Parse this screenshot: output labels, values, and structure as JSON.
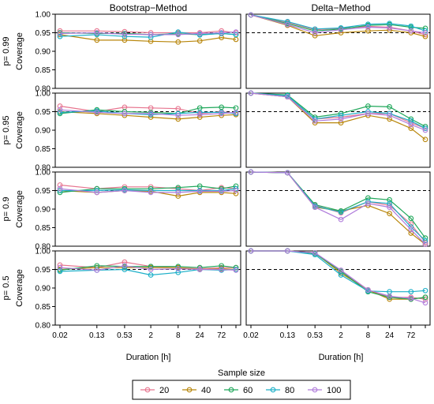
{
  "chart_data": {
    "type": "line",
    "column_titles": [
      "Bootstrap−Method",
      "Delta−Method"
    ],
    "row_titles": [
      "p= 0.99",
      "p= 0.95",
      "p= 0.9",
      "p= 0.5"
    ],
    "ylabel": "Coverage",
    "xlabel": "Duration [h]",
    "x_ticks": [
      "0.02",
      "0.13",
      "0.53",
      "2",
      "8",
      "24",
      "72"
    ],
    "x_values": [
      0.02,
      0.13,
      0.53,
      2,
      8,
      24,
      72,
      150
    ],
    "x_scale": "log",
    "y_ticks": [
      "0.80",
      "0.85",
      "0.90",
      "0.95",
      "1.00"
    ],
    "ylim": [
      0.8,
      1.0
    ],
    "reference_line": 0.95,
    "legend": {
      "title": "Sample size",
      "position": "bottom"
    },
    "series_meta": [
      {
        "name": "20",
        "color": "#E7758F"
      },
      {
        "name": "40",
        "color": "#B8860B"
      },
      {
        "name": "60",
        "color": "#1FA75A"
      },
      {
        "name": "80",
        "color": "#1BAFC8"
      },
      {
        "name": "100",
        "color": "#B07CDB"
      }
    ],
    "panels": [
      {
        "row": 0,
        "col": 0,
        "values": [
          [
            0.955,
            0.955,
            0.953,
            0.95,
            0.95,
            0.95,
            0.955,
            0.95
          ],
          [
            0.945,
            0.93,
            0.93,
            0.927,
            0.925,
            0.928,
            0.937,
            0.932
          ],
          [
            0.95,
            0.948,
            0.948,
            0.945,
            0.947,
            0.945,
            0.948,
            0.945
          ],
          [
            0.94,
            0.945,
            0.94,
            0.938,
            0.952,
            0.944,
            0.948,
            0.945
          ],
          [
            0.948,
            0.95,
            0.946,
            0.945,
            0.945,
            0.948,
            0.95,
            0.952
          ]
        ]
      },
      {
        "row": 0,
        "col": 1,
        "values": [
          [
            0.998,
            0.978,
            0.958,
            0.962,
            0.967,
            0.965,
            0.955,
            0.945
          ],
          [
            0.998,
            0.97,
            0.942,
            0.95,
            0.955,
            0.957,
            0.95,
            0.94
          ],
          [
            0.998,
            0.975,
            0.955,
            0.96,
            0.97,
            0.972,
            0.965,
            0.962
          ],
          [
            0.998,
            0.98,
            0.96,
            0.963,
            0.973,
            0.975,
            0.968,
            0.955
          ],
          [
            0.998,
            0.972,
            0.95,
            0.958,
            0.965,
            0.963,
            0.955,
            0.95
          ]
        ]
      },
      {
        "row": 1,
        "col": 0,
        "values": [
          [
            0.965,
            0.95,
            0.962,
            0.96,
            0.958,
            0.945,
            0.95,
            0.945
          ],
          [
            0.95,
            0.945,
            0.94,
            0.935,
            0.93,
            0.935,
            0.94,
            0.942
          ],
          [
            0.945,
            0.955,
            0.95,
            0.948,
            0.945,
            0.96,
            0.962,
            0.96
          ],
          [
            0.948,
            0.952,
            0.945,
            0.942,
            0.945,
            0.948,
            0.948,
            0.945
          ],
          [
            0.955,
            0.948,
            0.945,
            0.945,
            0.94,
            0.942,
            0.945,
            0.948
          ]
        ]
      },
      {
        "row": 1,
        "col": 1,
        "values": [
          [
            1.0,
            0.99,
            0.93,
            0.935,
            0.945,
            0.945,
            0.92,
            0.905
          ],
          [
            1.0,
            0.99,
            0.92,
            0.92,
            0.94,
            0.93,
            0.905,
            0.875
          ],
          [
            1.0,
            0.995,
            0.935,
            0.945,
            0.965,
            0.963,
            0.93,
            0.91
          ],
          [
            1.0,
            0.993,
            0.93,
            0.94,
            0.95,
            0.945,
            0.925,
            0.905
          ],
          [
            1.0,
            0.99,
            0.925,
            0.93,
            0.945,
            0.94,
            0.915,
            0.9
          ]
        ]
      },
      {
        "row": 2,
        "col": 0,
        "values": [
          [
            0.965,
            0.955,
            0.96,
            0.96,
            0.955,
            0.95,
            0.958,
            0.955
          ],
          [
            0.95,
            0.945,
            0.95,
            0.948,
            0.935,
            0.945,
            0.945,
            0.942
          ],
          [
            0.945,
            0.955,
            0.955,
            0.955,
            0.958,
            0.962,
            0.955,
            0.962
          ],
          [
            0.95,
            0.95,
            0.952,
            0.95,
            0.95,
            0.95,
            0.95,
            0.955
          ],
          [
            0.955,
            0.945,
            0.95,
            0.945,
            0.945,
            0.948,
            0.948,
            0.95
          ]
        ]
      },
      {
        "row": 2,
        "col": 1,
        "values": [
          [
            1.0,
            0.998,
            0.91,
            0.89,
            0.92,
            0.91,
            0.86,
            0.81
          ],
          [
            1.0,
            0.998,
            0.905,
            0.895,
            0.91,
            0.888,
            0.835,
            0.805
          ],
          [
            1.0,
            0.998,
            0.912,
            0.895,
            0.93,
            0.925,
            0.875,
            0.822
          ],
          [
            1.0,
            0.998,
            0.908,
            0.892,
            0.92,
            0.915,
            0.852,
            0.815
          ],
          [
            1.0,
            0.998,
            0.905,
            0.872,
            0.915,
            0.905,
            0.845,
            0.805
          ]
        ]
      },
      {
        "row": 3,
        "col": 0,
        "values": [
          [
            0.962,
            0.955,
            0.97,
            0.958,
            0.955,
            0.952,
            0.955,
            0.955
          ],
          [
            0.95,
            0.955,
            0.955,
            0.955,
            0.955,
            0.95,
            0.952,
            0.95
          ],
          [
            0.948,
            0.96,
            0.958,
            0.958,
            0.958,
            0.955,
            0.96,
            0.955
          ],
          [
            0.945,
            0.948,
            0.95,
            0.935,
            0.942,
            0.95,
            0.948,
            0.95
          ],
          [
            0.955,
            0.948,
            0.96,
            0.95,
            0.952,
            0.95,
            0.95,
            0.948
          ]
        ]
      },
      {
        "row": 3,
        "col": 1,
        "values": [
          [
            1.0,
            1.0,
            0.995,
            0.945,
            0.895,
            0.875,
            0.875,
            0.87
          ],
          [
            1.0,
            1.0,
            0.995,
            0.94,
            0.895,
            0.87,
            0.87,
            0.875
          ],
          [
            1.0,
            1.0,
            0.993,
            0.945,
            0.89,
            0.875,
            0.87,
            0.875
          ],
          [
            1.0,
            1.0,
            0.99,
            0.935,
            0.892,
            0.89,
            0.89,
            0.893
          ],
          [
            1.0,
            1.0,
            0.995,
            0.948,
            0.895,
            0.878,
            0.872,
            0.86
          ]
        ]
      }
    ]
  }
}
